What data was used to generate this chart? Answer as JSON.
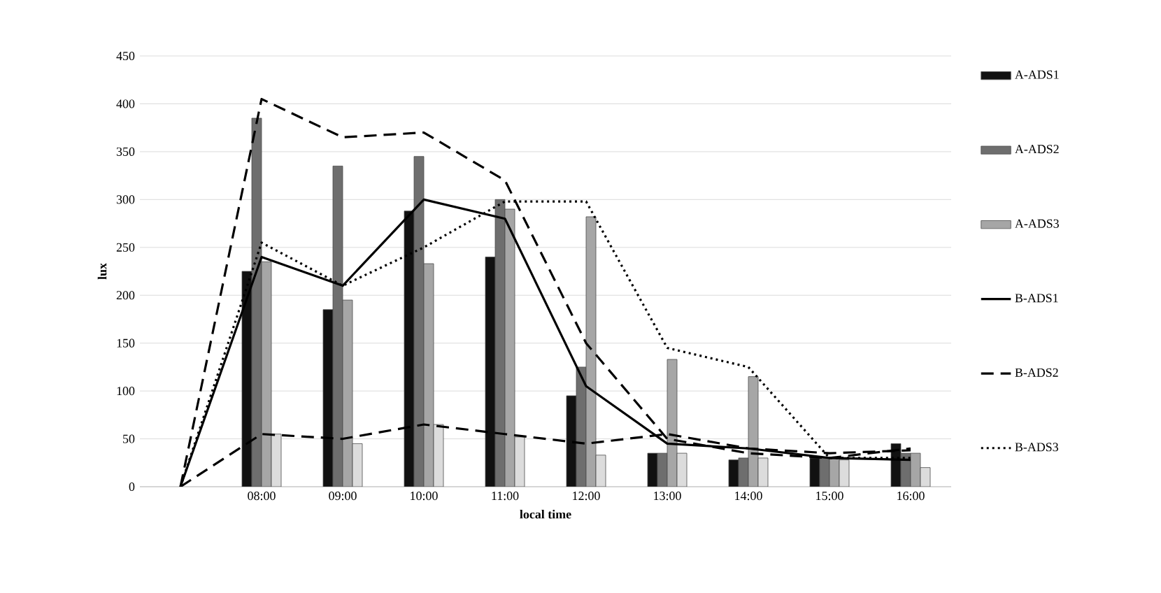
{
  "chart_data": {
    "type": "bar",
    "xlabel": "local time",
    "ylabel": "lux",
    "categories": [
      null,
      "08:00",
      "09:00",
      "10:00",
      "11:00",
      "12:00",
      "13:00",
      "14:00",
      "15:00",
      "16:00"
    ],
    "ylim": [
      0,
      450
    ],
    "yticks": [
      0,
      50,
      100,
      150,
      200,
      250,
      300,
      350,
      400,
      450
    ],
    "grid": "y",
    "legend": "right",
    "series": [
      {
        "name": "A-ADS1",
        "color": "#111111",
        "values": [
          null,
          225,
          185,
          288,
          240,
          95,
          35,
          28,
          30,
          45
        ]
      },
      {
        "name": "A-ADS2",
        "color": "#6e6e6e",
        "values": [
          null,
          385,
          335,
          345,
          300,
          125,
          35,
          30,
          30,
          35
        ]
      },
      {
        "name": "A-ADS3",
        "color": "#a6a6a6",
        "values": [
          null,
          235,
          195,
          233,
          290,
          282,
          133,
          115,
          30,
          35
        ]
      },
      {
        "color": "#dcdcdc",
        "values": [
          null,
          55,
          45,
          65,
          52,
          33,
          35,
          30,
          28,
          20
        ]
      },
      {
        "name": "B-ADS1",
        "type": "line",
        "line_style": "solid",
        "color": "#000000",
        "values": [
          0,
          240,
          210,
          300,
          280,
          105,
          45,
          40,
          30,
          28
        ]
      },
      {
        "name": "B-ADS2",
        "type": "line",
        "line_style": "dashed",
        "color": "#000000",
        "values": [
          0,
          405,
          365,
          370,
          320,
          150,
          50,
          35,
          30,
          40
        ]
      },
      {
        "name": "B-ADS3",
        "type": "line",
        "line_style": "dotted",
        "color": "#000000",
        "values": [
          0,
          255,
          210,
          250,
          298,
          298,
          145,
          125,
          30,
          30
        ]
      },
      {
        "type": "line",
        "line_style": "dashed",
        "color": "#000000",
        "values": [
          0,
          55,
          50,
          65,
          55,
          45,
          55,
          40,
          35,
          38
        ]
      }
    ]
  }
}
